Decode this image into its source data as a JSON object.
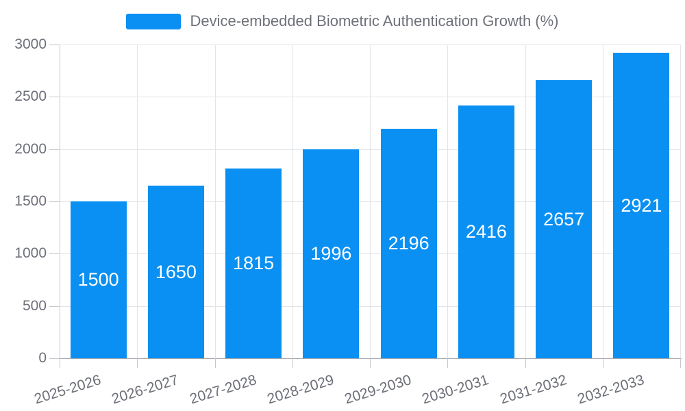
{
  "chart_data": {
    "type": "bar",
    "title": "",
    "legend": {
      "label": "Device-embedded Biometric Authentication Growth (%)",
      "position": "top-center"
    },
    "categories": [
      "2025-2026",
      "2026-2027",
      "2027-2028",
      "2028-2029",
      "2029-2030",
      "2030-2031",
      "2031-2032",
      "2032-2033"
    ],
    "values": [
      1500,
      1650,
      1815,
      1996,
      2196,
      2416,
      2657,
      2921
    ],
    "value_labels_shown_inside_bars": true,
    "xlabel": "",
    "ylabel": "",
    "ylim": [
      0,
      3000
    ],
    "yticks": [
      0,
      500,
      1000,
      1500,
      2000,
      2500,
      3000
    ],
    "grid": true,
    "colors": {
      "bar": "#0a90f2",
      "bar_value_text": "#ffffff",
      "axis_text": "#6e7079",
      "legend_text": "#6e7079",
      "gridline": "#e2e4e9",
      "axis_line": "#a6a9af",
      "tick": "#c4c7cc",
      "background": "#ffffff"
    }
  }
}
